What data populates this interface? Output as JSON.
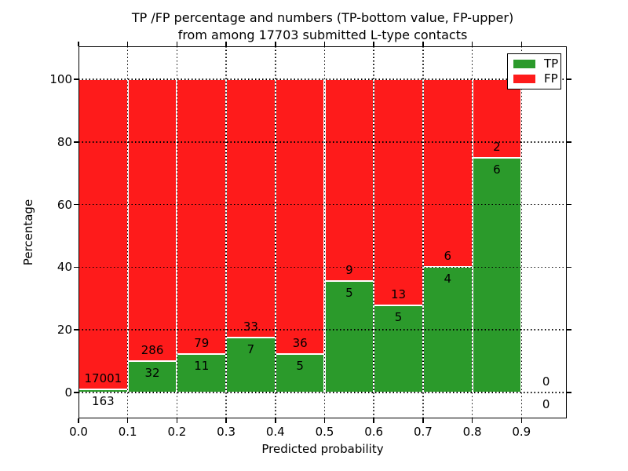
{
  "figure": {
    "title_line1": "TP /FP percentage and numbers (TP-bottom value, FP-upper)",
    "title_line2": "from among 17703 submitted L-type contacts",
    "xlabel": "Predicted probability",
    "ylabel": "Percentage"
  },
  "legend": {
    "items": [
      {
        "label": "TP",
        "color": "#2b9a2b"
      },
      {
        "label": "FP",
        "color": "#fe1b1b"
      }
    ]
  },
  "colors": {
    "tp": "#2b9a2b",
    "fp": "#fe1b1b",
    "bar_edge": "#ffffff",
    "grid": "#000000",
    "text": "#000000",
    "background": "#ffffff"
  },
  "chart_data": {
    "type": "bar",
    "stacked": true,
    "normalized": "each probability bin scaled to 100 percent; TP on bottom, FP on top",
    "title": "TP /FP percentage and numbers (TP-bottom value, FP-upper) from among 17703 submitted L-type contacts",
    "xlabel": "Predicted probability",
    "ylabel": "Percentage",
    "total_contacts": 17703,
    "bin_edges": [
      0.0,
      0.1,
      0.2,
      0.3,
      0.4,
      0.5,
      0.6,
      0.7,
      0.8,
      0.9,
      1.0
    ],
    "categories": [
      "0.0-0.1",
      "0.1-0.2",
      "0.2-0.3",
      "0.3-0.4",
      "0.4-0.5",
      "0.5-0.6",
      "0.6-0.7",
      "0.7-0.8",
      "0.8-0.9",
      "0.9-1.0"
    ],
    "series": [
      {
        "name": "TP",
        "counts": [
          163,
          32,
          11,
          7,
          5,
          5,
          5,
          4,
          6,
          0
        ]
      },
      {
        "name": "FP",
        "counts": [
          17001,
          286,
          79,
          33,
          36,
          9,
          13,
          6,
          2,
          0
        ]
      }
    ],
    "tp_percent_per_bin": [
      0.95,
      10.06,
      12.22,
      17.5,
      12.2,
      35.71,
      27.78,
      40.0,
      75.0,
      null
    ],
    "yticks": [
      0,
      20,
      40,
      60,
      80,
      100
    ],
    "xtick_labels": [
      "0.0",
      "0.1",
      "0.2",
      "0.3",
      "0.4",
      "0.5",
      "0.6",
      "0.7",
      "0.8",
      "0.9"
    ],
    "ylim": [
      -8.3,
      110.8
    ],
    "xlim": [
      0.0,
      0.99
    ],
    "grid": "black dotted gridlines drawn on top of bars",
    "legend_position": "upper right"
  }
}
